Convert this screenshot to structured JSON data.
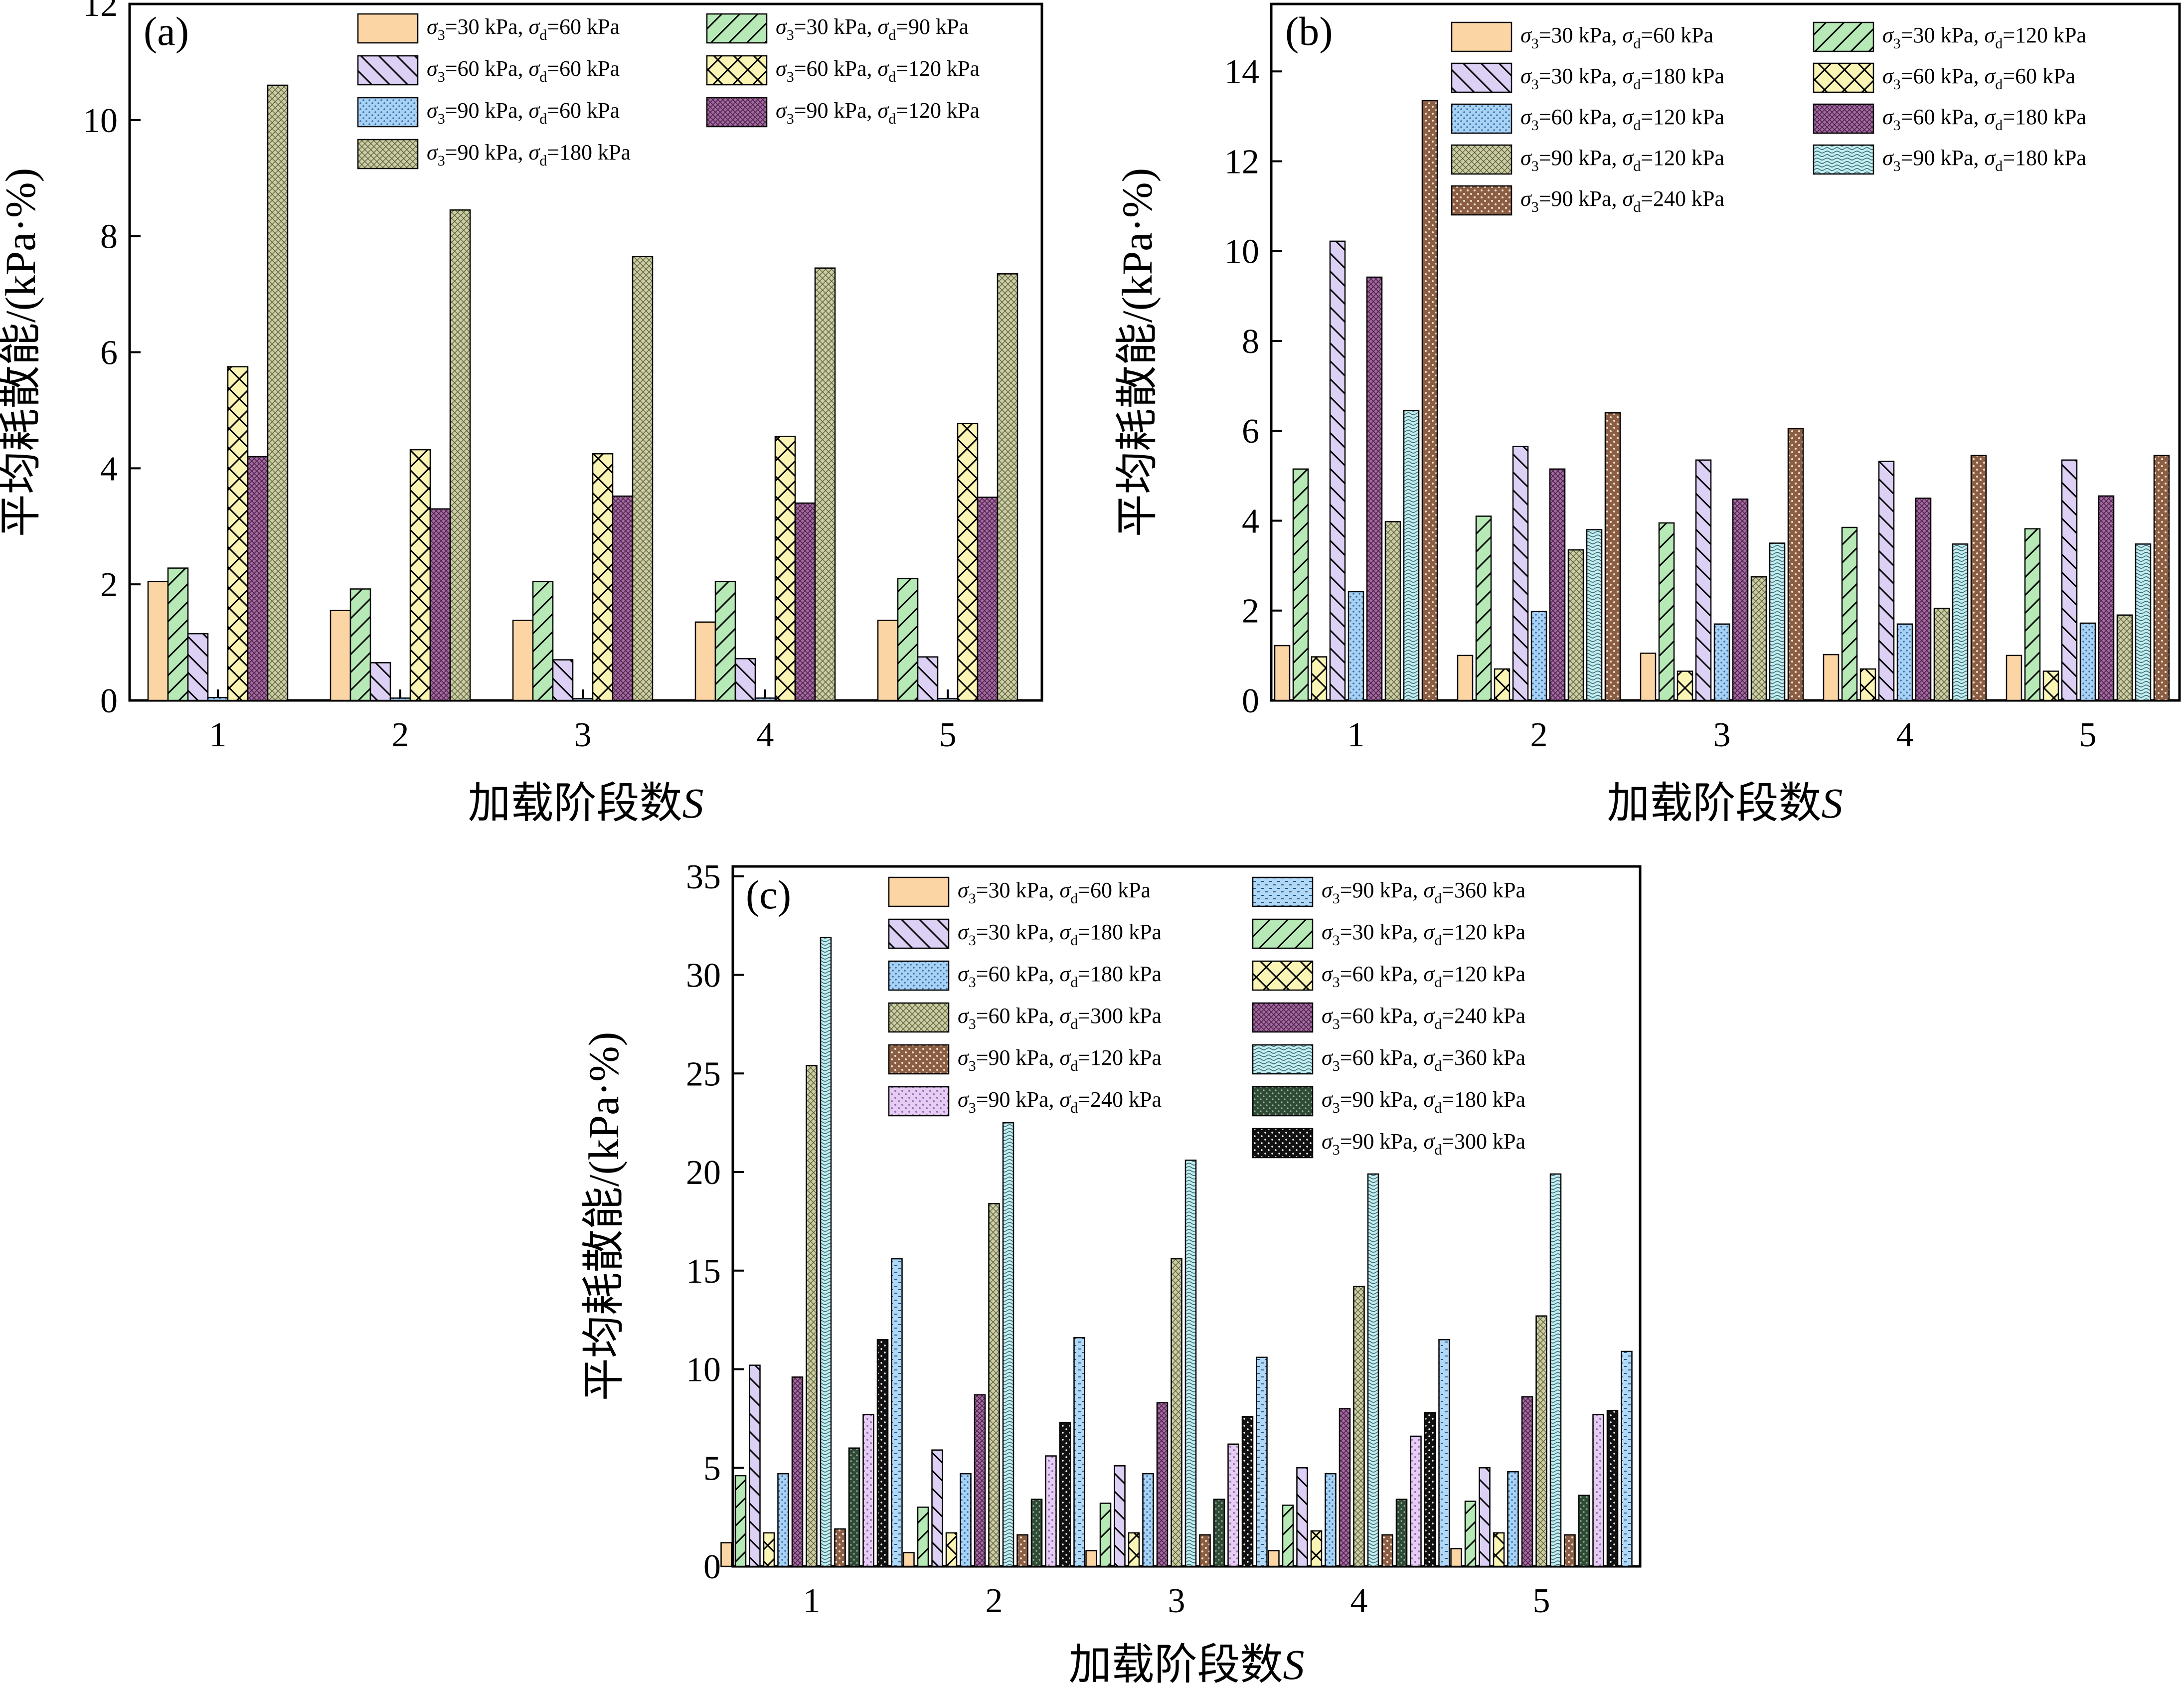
{
  "figure_title": "平均耗散能 vs 加载阶段数S",
  "chart_data": [
    {
      "panel": "(a)",
      "type": "bar",
      "title": "",
      "xlabel": "加载阶段数",
      "xlabel_var": "S",
      "ylabel": "平均耗散能/(kPa·%)",
      "ylim": [
        0,
        12
      ],
      "yticks": [
        0,
        2,
        4,
        6,
        8,
        10,
        12
      ],
      "categories": [
        "1",
        "2",
        "3",
        "4",
        "5"
      ],
      "series": [
        {
          "name": "σ3=30 kPa, σd=60 kPa",
          "s3": "30",
          "sd": "60",
          "pattern": "solid",
          "color": "#fcd5a5",
          "values": [
            2.05,
            1.55,
            1.38,
            1.35,
            1.38
          ]
        },
        {
          "name": "σ3=30 kPa, σd=90 kPa",
          "s3": "30",
          "sd": "90",
          "pattern": "fdiag",
          "color": "#b6e9b6",
          "values": [
            2.28,
            1.92,
            2.05,
            2.05,
            2.1
          ]
        },
        {
          "name": "σ3=60 kPa, σd=60 kPa",
          "s3": "60",
          "sd": "60",
          "pattern": "bdiag",
          "color": "#ddd0f5",
          "values": [
            1.15,
            0.65,
            0.7,
            0.72,
            0.75
          ]
        },
        {
          "name": "σ3=90 kPa, σd=60 kPa",
          "s3": "90",
          "sd": "60",
          "pattern": "dots",
          "color": "#a8d2f5",
          "values": [
            0.05,
            0.04,
            0.03,
            0.04,
            0.03
          ]
        },
        {
          "name": "σ3=60 kPa, σd=120 kPa",
          "s3": "60",
          "sd": "120",
          "pattern": "cross",
          "color": "#fbf5b5",
          "values": [
            5.75,
            4.32,
            4.25,
            4.55,
            4.77
          ]
        },
        {
          "name": "σ3=90 kPa, σd=120 kPa",
          "s3": "90",
          "sd": "120",
          "pattern": "dense",
          "color": "#a26aa0",
          "values": [
            4.2,
            3.3,
            3.52,
            3.4,
            3.5
          ]
        },
        {
          "name": "σ3=90 kPa, σd=180 kPa",
          "s3": "90",
          "sd": "180",
          "pattern": "check",
          "color": "#cbcda6",
          "values": [
            10.6,
            8.45,
            7.65,
            7.45,
            7.35
          ]
        }
      ]
    },
    {
      "panel": "(b)",
      "type": "bar",
      "title": "",
      "xlabel": "加载阶段数",
      "xlabel_var": "S",
      "ylabel": "平均耗散能/(kPa·%)",
      "ylim": [
        0,
        15.5
      ],
      "yticks": [
        0,
        2,
        4,
        6,
        8,
        10,
        12,
        14
      ],
      "categories": [
        "1",
        "2",
        "3",
        "4",
        "5"
      ],
      "series": [
        {
          "name": "σ3=30 kPa, σd=60 kPa",
          "s3": "30",
          "sd": "60",
          "pattern": "solid",
          "color": "#fcd5a5",
          "values": [
            1.22,
            1.0,
            1.05,
            1.02,
            1.0
          ]
        },
        {
          "name": "σ3=30 kPa, σd=120 kPa",
          "s3": "30",
          "sd": "120",
          "pattern": "fdiag",
          "color": "#b6e9b6",
          "values": [
            5.15,
            4.1,
            3.95,
            3.85,
            3.82
          ]
        },
        {
          "name": "σ3=60 kPa, σd=60 kPa",
          "s3": "60",
          "sd": "60",
          "pattern": "cross",
          "color": "#fbf5b5",
          "values": [
            0.97,
            0.7,
            0.65,
            0.7,
            0.65
          ]
        },
        {
          "name": "σ3=30 kPa, σd=180 kPa",
          "s3": "30",
          "sd": "180",
          "pattern": "bdiag",
          "color": "#ddd0f5",
          "values": [
            10.22,
            5.65,
            5.35,
            5.32,
            5.35
          ]
        },
        {
          "name": "σ3=60 kPa, σd=120 kPa",
          "s3": "60",
          "sd": "120",
          "pattern": "dots",
          "color": "#a8d2f5",
          "values": [
            2.42,
            1.98,
            1.7,
            1.7,
            1.72
          ]
        },
        {
          "name": "σ3=60 kPa, σd=180 kPa",
          "s3": "60",
          "sd": "180",
          "pattern": "dense",
          "color": "#a26aa0",
          "values": [
            9.42,
            5.15,
            4.48,
            4.5,
            4.55
          ]
        },
        {
          "name": "σ3=90 kPa, σd=120 kPa",
          "s3": "90",
          "sd": "120",
          "pattern": "check",
          "color": "#cbcda6",
          "values": [
            3.98,
            3.35,
            2.75,
            2.05,
            1.9
          ]
        },
        {
          "name": "σ3=90 kPa, σd=180 kPa",
          "s3": "90",
          "sd": "180",
          "pattern": "wave",
          "color": "#c7ecef",
          "values": [
            6.45,
            3.8,
            3.5,
            3.48,
            3.48
          ]
        },
        {
          "name": "σ3=90 kPa, σd=240 kPa",
          "s3": "90",
          "sd": "240",
          "pattern": "browndots",
          "color": "#8b5e43",
          "values": [
            13.35,
            6.4,
            6.05,
            5.45,
            5.45
          ]
        }
      ]
    },
    {
      "panel": "(c)",
      "type": "bar",
      "title": "",
      "xlabel": "加载阶段数",
      "xlabel_var": "S",
      "ylabel": "平均耗散能/(kPa·%)",
      "ylim": [
        0,
        35.5
      ],
      "yticks": [
        0,
        5,
        10,
        15,
        20,
        25,
        30,
        35
      ],
      "categories": [
        "1",
        "2",
        "3",
        "4",
        "5"
      ],
      "series": [
        {
          "name": "σ3=30 kPa, σd=60 kPa",
          "s3": "30",
          "sd": "60",
          "pattern": "solid",
          "color": "#fcd5a5",
          "values": [
            1.2,
            0.7,
            0.8,
            0.8,
            0.9
          ]
        },
        {
          "name": "σ3=30 kPa, σd=120 kPa",
          "s3": "30",
          "sd": "120",
          "pattern": "fdiag",
          "color": "#b6e9b6",
          "values": [
            4.6,
            3.0,
            3.2,
            3.1,
            3.3
          ]
        },
        {
          "name": "σ3=30 kPa, σd=180 kPa",
          "s3": "30",
          "sd": "180",
          "pattern": "bdiag",
          "color": "#ddd0f5",
          "values": [
            10.2,
            5.9,
            5.1,
            5.0,
            5.0
          ]
        },
        {
          "name": "σ3=60 kPa, σd=120 kPa",
          "s3": "60",
          "sd": "120",
          "pattern": "cross",
          "color": "#fbf5b5",
          "values": [
            1.7,
            1.7,
            1.7,
            1.8,
            1.7
          ]
        },
        {
          "name": "σ3=60 kPa, σd=180 kPa",
          "s3": "60",
          "sd": "180",
          "pattern": "dots",
          "color": "#a8d2f5",
          "values": [
            4.7,
            4.7,
            4.7,
            4.7,
            4.8
          ]
        },
        {
          "name": "σ3=60 kPa, σd=240 kPa",
          "s3": "60",
          "sd": "240",
          "pattern": "dense",
          "color": "#a26aa0",
          "values": [
            9.6,
            8.7,
            8.3,
            8.0,
            8.6
          ]
        },
        {
          "name": "σ3=60 kPa, σd=300 kPa",
          "s3": "60",
          "sd": "300",
          "pattern": "check",
          "color": "#cbcda6",
          "values": [
            25.4,
            18.4,
            15.6,
            14.2,
            12.7
          ]
        },
        {
          "name": "σ3=60 kPa, σd=360 kPa",
          "s3": "60",
          "sd": "360",
          "pattern": "wave",
          "color": "#c7ecef",
          "values": [
            31.9,
            22.5,
            20.6,
            19.9,
            19.9
          ]
        },
        {
          "name": "σ3=90 kPa, σd=120 kPa",
          "s3": "90",
          "sd": "120",
          "pattern": "browndots",
          "color": "#8b5e43",
          "values": [
            1.9,
            1.6,
            1.6,
            1.6,
            1.6
          ]
        },
        {
          "name": "σ3=90 kPa, σd=180 kPa",
          "s3": "90",
          "sd": "180",
          "pattern": "darkgreen",
          "color": "#2f4a35",
          "values": [
            6.0,
            3.4,
            3.4,
            3.4,
            3.6
          ]
        },
        {
          "name": "σ3=90 kPa, σd=240 kPa",
          "s3": "90",
          "sd": "240",
          "pattern": "lavdots",
          "color": "#e6cdf3",
          "values": [
            7.7,
            5.6,
            6.2,
            6.6,
            7.7
          ]
        },
        {
          "name": "σ3=90 kPa, σd=300 kPa",
          "s3": "90",
          "sd": "300",
          "pattern": "black",
          "color": "#111111",
          "values": [
            11.5,
            7.3,
            7.6,
            7.8,
            7.9
          ]
        },
        {
          "name": "σ3=90 kPa, σd=360 kPa",
          "s3": "90",
          "sd": "360",
          "pattern": "bluedash",
          "color": "#b2d8f5",
          "values": [
            15.6,
            11.6,
            10.6,
            11.5,
            10.9
          ]
        }
      ]
    }
  ]
}
